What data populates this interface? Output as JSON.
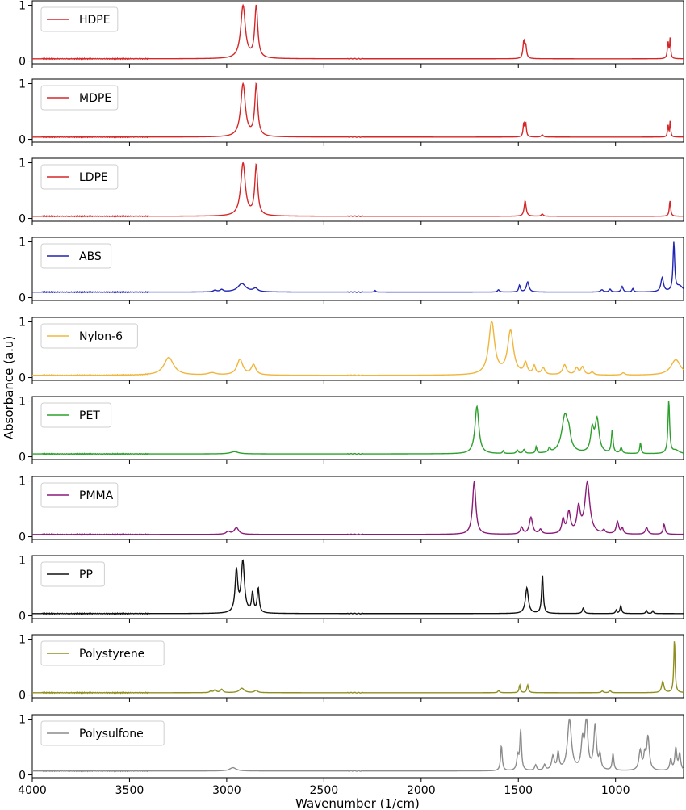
{
  "chart_data": {
    "type": "line",
    "layout": "stacked-panels",
    "xlabel": "Wavenumber (1/cm)",
    "ylabel": "Absorbance (a.u)",
    "xlim": [
      4000,
      650
    ],
    "x_ticks": [
      4000,
      3500,
      3000,
      2500,
      2000,
      1500,
      1000
    ],
    "y_ticks": [
      0,
      1
    ],
    "ylim": [
      -0.05,
      1.08
    ],
    "legend_position": "upper-left",
    "grid": false,
    "panels": [
      {
        "name": "HDPE",
        "color": "#d62728",
        "baseline": 0.04,
        "peaks": [
          [
            2916,
            0.95,
            14
          ],
          [
            2848,
            0.95,
            9
          ],
          [
            1472,
            0.3,
            5
          ],
          [
            1462,
            0.22,
            5
          ],
          [
            730,
            0.3,
            4
          ],
          [
            719,
            0.35,
            3
          ]
        ]
      },
      {
        "name": "MDPE",
        "color": "#d62728",
        "baseline": 0.04,
        "peaks": [
          [
            2916,
            0.95,
            14
          ],
          [
            2848,
            0.93,
            9
          ],
          [
            1472,
            0.24,
            4
          ],
          [
            1462,
            0.24,
            4
          ],
          [
            1377,
            0.04,
            6
          ],
          [
            730,
            0.22,
            3
          ],
          [
            719,
            0.28,
            3
          ]
        ]
      },
      {
        "name": "LDPE",
        "color": "#d62728",
        "baseline": 0.04,
        "peaks": [
          [
            2916,
            0.95,
            14
          ],
          [
            2848,
            0.9,
            9
          ],
          [
            1465,
            0.28,
            6
          ],
          [
            1377,
            0.04,
            6
          ],
          [
            720,
            0.28,
            4
          ]
        ]
      },
      {
        "name": "ABS",
        "color": "#1f24b4",
        "baseline": 0.1,
        "peaks": [
          [
            3060,
            0.03,
            10
          ],
          [
            3026,
            0.04,
            10
          ],
          [
            2922,
            0.15,
            25
          ],
          [
            2852,
            0.06,
            14
          ],
          [
            2237,
            0.03,
            4
          ],
          [
            1602,
            0.04,
            6
          ],
          [
            1494,
            0.12,
            5
          ],
          [
            1452,
            0.18,
            8
          ],
          [
            1070,
            0.04,
            8
          ],
          [
            1028,
            0.05,
            6
          ],
          [
            966,
            0.1,
            6
          ],
          [
            911,
            0.06,
            5
          ],
          [
            760,
            0.25,
            8
          ],
          [
            700,
            0.88,
            5
          ],
          [
            670,
            0.1,
            20
          ]
        ]
      },
      {
        "name": "Nylon-6",
        "color": "#f0b53b",
        "baseline": 0.04,
        "peaks": [
          [
            3298,
            0.32,
            30
          ],
          [
            3076,
            0.04,
            25
          ],
          [
            2932,
            0.28,
            18
          ],
          [
            2862,
            0.18,
            14
          ],
          [
            1637,
            0.95,
            18
          ],
          [
            1540,
            0.78,
            18
          ],
          [
            1463,
            0.2,
            10
          ],
          [
            1418,
            0.15,
            8
          ],
          [
            1372,
            0.12,
            10
          ],
          [
            1262,
            0.18,
            12
          ],
          [
            1200,
            0.12,
            10
          ],
          [
            1170,
            0.14,
            10
          ],
          [
            1120,
            0.05,
            10
          ],
          [
            960,
            0.04,
            10
          ],
          [
            690,
            0.28,
            30
          ]
        ]
      },
      {
        "name": "PET",
        "color": "#2ca02c",
        "baseline": 0.05,
        "peaks": [
          [
            2960,
            0.04,
            25
          ],
          [
            1713,
            0.85,
            12
          ],
          [
            1578,
            0.05,
            4
          ],
          [
            1505,
            0.06,
            6
          ],
          [
            1471,
            0.07,
            6
          ],
          [
            1408,
            0.12,
            4
          ],
          [
            1340,
            0.08,
            6
          ],
          [
            1260,
            0.68,
            20
          ],
          [
            1240,
            0.2,
            10
          ],
          [
            1120,
            0.4,
            10
          ],
          [
            1095,
            0.6,
            12
          ],
          [
            1017,
            0.42,
            5
          ],
          [
            971,
            0.1,
            6
          ],
          [
            872,
            0.2,
            4
          ],
          [
            726,
            0.95,
            5
          ],
          [
            690,
            0.06,
            20
          ]
        ]
      },
      {
        "name": "PMMA",
        "color": "#8b1a7a",
        "baseline": 0.04,
        "peaks": [
          [
            2993,
            0.05,
            12
          ],
          [
            2950,
            0.12,
            14
          ],
          [
            1727,
            0.95,
            10
          ],
          [
            1483,
            0.12,
            8
          ],
          [
            1435,
            0.3,
            10
          ],
          [
            1386,
            0.08,
            8
          ],
          [
            1270,
            0.25,
            8
          ],
          [
            1240,
            0.38,
            10
          ],
          [
            1190,
            0.45,
            10
          ],
          [
            1145,
            0.92,
            15
          ],
          [
            1060,
            0.06,
            8
          ],
          [
            990,
            0.22,
            8
          ],
          [
            965,
            0.1,
            6
          ],
          [
            840,
            0.12,
            8
          ],
          [
            750,
            0.18,
            6
          ]
        ]
      },
      {
        "name": "PP",
        "color": "#111111",
        "baseline": 0.04,
        "peaks": [
          [
            2950,
            0.75,
            8
          ],
          [
            2917,
            0.92,
            10
          ],
          [
            2867,
            0.35,
            6
          ],
          [
            2838,
            0.44,
            6
          ],
          [
            1456,
            0.46,
            9
          ],
          [
            1376,
            0.7,
            5
          ],
          [
            1166,
            0.1,
            6
          ],
          [
            997,
            0.06,
            4
          ],
          [
            973,
            0.14,
            5
          ],
          [
            841,
            0.06,
            4
          ],
          [
            808,
            0.05,
            4
          ]
        ]
      },
      {
        "name": "Polystyrene",
        "color": "#8f8f1f",
        "baseline": 0.04,
        "peaks": [
          [
            3082,
            0.03,
            6
          ],
          [
            3060,
            0.05,
            8
          ],
          [
            3026,
            0.06,
            8
          ],
          [
            2922,
            0.08,
            15
          ],
          [
            2849,
            0.04,
            10
          ],
          [
            1601,
            0.04,
            5
          ],
          [
            1493,
            0.14,
            4
          ],
          [
            1452,
            0.14,
            5
          ],
          [
            1068,
            0.03,
            6
          ],
          [
            1028,
            0.04,
            5
          ],
          [
            757,
            0.2,
            7
          ],
          [
            697,
            0.96,
            4
          ]
        ]
      },
      {
        "name": "Polysulfone",
        "color": "#8c8c8c",
        "baseline": 0.07,
        "peaks": [
          [
            2968,
            0.06,
            20
          ],
          [
            1587,
            0.45,
            5
          ],
          [
            1503,
            0.25,
            6
          ],
          [
            1488,
            0.72,
            5
          ],
          [
            1411,
            0.1,
            6
          ],
          [
            1365,
            0.1,
            6
          ],
          [
            1322,
            0.25,
            8
          ],
          [
            1295,
            0.3,
            6
          ],
          [
            1237,
            0.92,
            12
          ],
          [
            1170,
            0.5,
            8
          ],
          [
            1150,
            0.95,
            8
          ],
          [
            1105,
            0.8,
            8
          ],
          [
            1080,
            0.25,
            6
          ],
          [
            1013,
            0.3,
            5
          ],
          [
            873,
            0.35,
            8
          ],
          [
            850,
            0.25,
            6
          ],
          [
            833,
            0.6,
            8
          ],
          [
            716,
            0.2,
            6
          ],
          [
            690,
            0.4,
            6
          ],
          [
            670,
            0.3,
            6
          ]
        ]
      }
    ]
  }
}
